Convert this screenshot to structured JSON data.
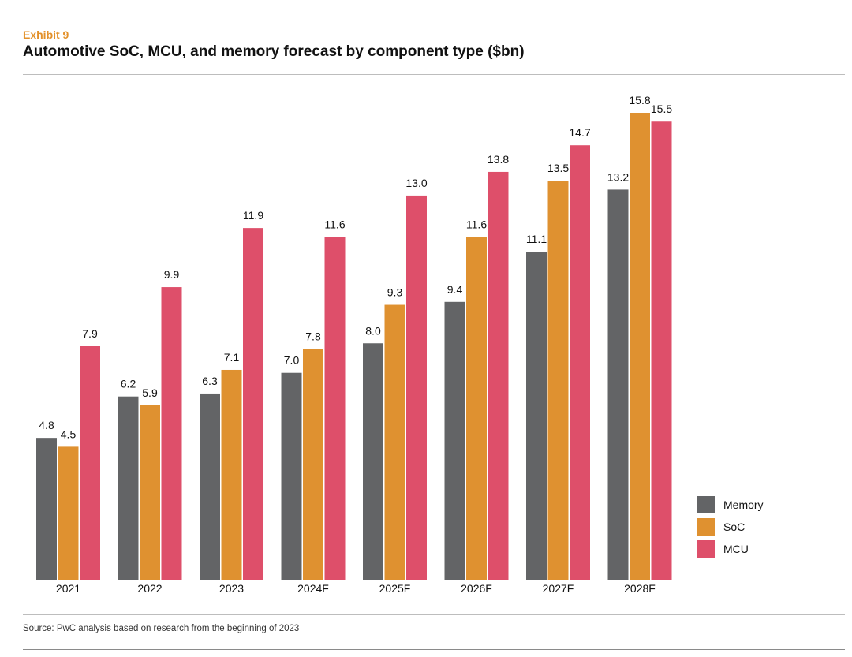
{
  "header": {
    "exhibit": "Exhibit  9",
    "title": "Automotive SoC, MCU, and memory forecast by component type ($bn)"
  },
  "footer": {
    "source": "Source: PwC analysis based on research from the beginning of 2023"
  },
  "colors": {
    "Memory": "#636466",
    "SoC": "#df9130",
    "MCU": "#de4f6a",
    "accent": "#e3912a"
  },
  "chart_data": {
    "type": "bar",
    "title": "Automotive SoC, MCU, and memory forecast by component type ($bn)",
    "xlabel": "",
    "ylabel": "",
    "ylim": [
      0,
      16
    ],
    "grid": false,
    "legend_position": "bottom-right",
    "categories": [
      "2021",
      "2022",
      "2023",
      "2024F",
      "2025F",
      "2026F",
      "2027F",
      "2028F"
    ],
    "series": [
      {
        "name": "Memory",
        "values": [
          4.8,
          6.2,
          6.3,
          7.0,
          8.0,
          9.4,
          11.1,
          13.2
        ],
        "labels": [
          "4.8",
          "6.2",
          "6.3",
          "7.0",
          "8.0",
          "9.4",
          "11.1",
          "13.2"
        ]
      },
      {
        "name": "SoC",
        "values": [
          4.5,
          5.9,
          7.1,
          7.8,
          9.3,
          11.6,
          13.5,
          15.8
        ],
        "labels": [
          "4.5",
          "5.9",
          "7.1",
          "7.8",
          "9.3",
          "11.6",
          "13.5",
          "15.8"
        ]
      },
      {
        "name": "MCU",
        "values": [
          7.9,
          9.9,
          11.9,
          11.6,
          13.0,
          13.8,
          14.7,
          15.5
        ],
        "labels": [
          "7.9",
          "9.9",
          "11.9",
          "11.6",
          "13.0",
          "13.8",
          "14.7",
          "15.5"
        ]
      }
    ]
  }
}
